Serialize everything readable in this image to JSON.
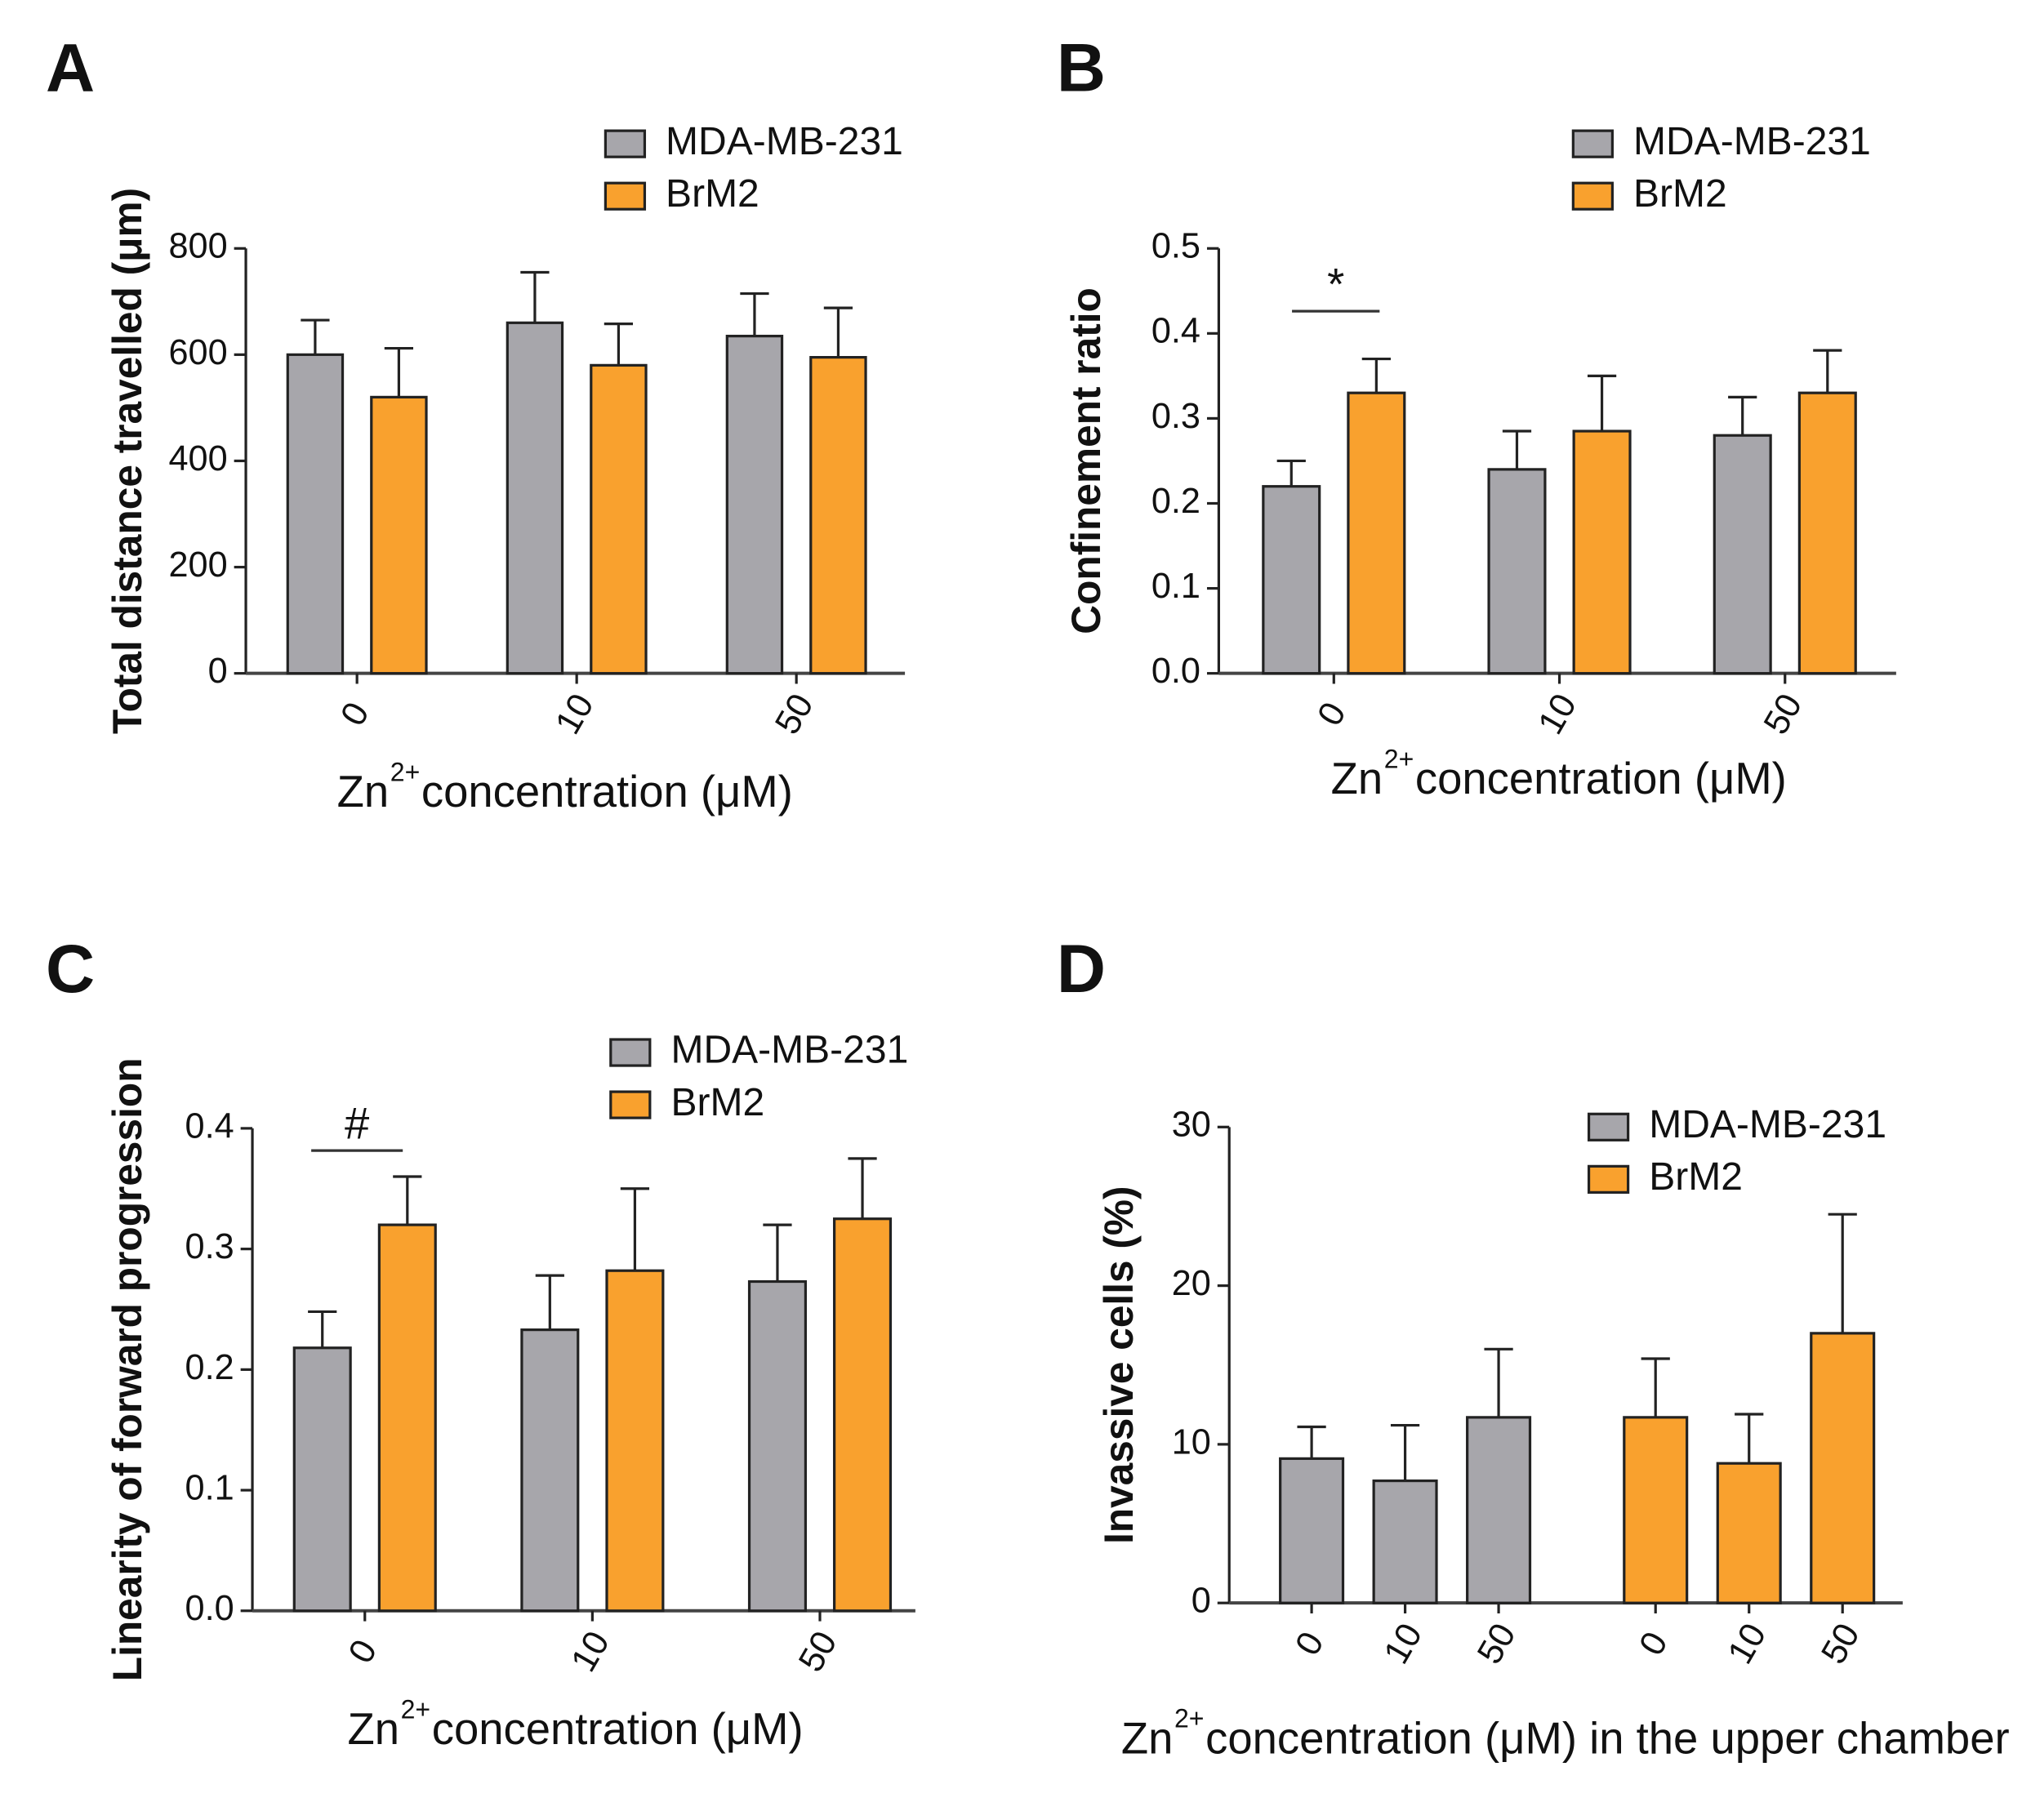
{
  "chart_data": [
    {
      "type": "bar",
      "panel": "A",
      "ylabel": "Total distance travelled (μm)",
      "xlabel": {
        "base": "Zn",
        "sup": "2+",
        "rest": "concentration (μM)"
      },
      "categories": [
        "0",
        "10",
        "50"
      ],
      "series": [
        {
          "name": "MDA-MB-231",
          "color": "#a7a6ab",
          "values": [
            600,
            660,
            635
          ],
          "errors": [
            65,
            95,
            80
          ]
        },
        {
          "name": "BrM2",
          "color": "#f9a12e",
          "values": [
            520,
            580,
            595
          ],
          "errors": [
            92,
            78,
            93
          ]
        }
      ],
      "ylim": [
        0,
        800
      ],
      "yticks": [
        0,
        200,
        400,
        600,
        800
      ]
    },
    {
      "type": "bar",
      "panel": "B",
      "ylabel": "Confinement ratio",
      "xlabel": {
        "base": "Zn",
        "sup": "2+",
        "rest": "concentration (μM)"
      },
      "categories": [
        "0",
        "10",
        "50"
      ],
      "series": [
        {
          "name": "MDA-MB-231",
          "color": "#a7a6ab",
          "values": [
            0.22,
            0.24,
            0.28
          ],
          "errors": [
            0.03,
            0.045,
            0.045
          ]
        },
        {
          "name": "BrM2",
          "color": "#f9a12e",
          "values": [
            0.33,
            0.285,
            0.33
          ],
          "errors": [
            0.04,
            0.065,
            0.05
          ]
        }
      ],
      "ylim": [
        0,
        0.5
      ],
      "yticks": [
        {
          "value": 0,
          "label": "0.0"
        },
        0.1,
        0.2,
        0.3,
        0.4,
        0.5
      ],
      "annotation": "*"
    },
    {
      "type": "bar",
      "panel": "C",
      "ylabel": "Linearity of forward progression",
      "xlabel": {
        "base": "Zn",
        "sup": "2+",
        "rest": "concentration (μM)"
      },
      "categories": [
        "0",
        "10",
        "50"
      ],
      "series": [
        {
          "name": "MDA-MB-231",
          "color": "#a7a6ab",
          "values": [
            0.218,
            0.233,
            0.273
          ],
          "errors": [
            0.03,
            0.045,
            0.047
          ]
        },
        {
          "name": "BrM2",
          "color": "#f9a12e",
          "values": [
            0.32,
            0.282,
            0.325
          ],
          "errors": [
            0.04,
            0.068,
            0.05
          ]
        }
      ],
      "ylim": [
        0,
        0.4
      ],
      "yticks": [
        {
          "value": 0,
          "label": "0.0"
        },
        0.1,
        0.2,
        0.3,
        0.4
      ],
      "annotation": "#"
    },
    {
      "type": "bar",
      "panel": "D",
      "ylabel": "Invassive cells (%)",
      "xlabel": {
        "base": "Zn",
        "sup": "2+",
        "rest": "concentration (μM) in the upper chamber"
      },
      "categories": [
        "0",
        "10",
        "50"
      ],
      "series": [
        {
          "name": "MDA-MB-231",
          "color": "#a7a6ab",
          "values": [
            9.1,
            7.7,
            11.7
          ],
          "errors": [
            2.0,
            3.5,
            4.3
          ]
        },
        {
          "name": "BrM2",
          "color": "#f9a12e",
          "values": [
            11.7,
            8.8,
            17
          ],
          "errors": [
            3.7,
            3.1,
            7.5
          ]
        }
      ],
      "ylim": [
        0,
        30
      ],
      "yticks": [
        0,
        10,
        20,
        30
      ],
      "grouping": "by series"
    }
  ]
}
